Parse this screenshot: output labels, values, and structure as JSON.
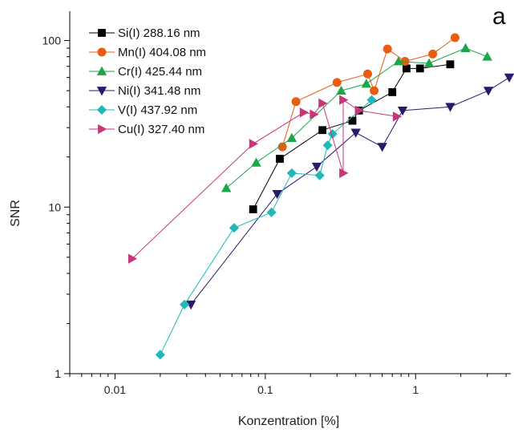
{
  "chart_data": {
    "type": "scatter",
    "panel_label": "a",
    "xlabel": "Konzentration [%]",
    "ylabel": "SNR",
    "xscale": "log",
    "yscale": "log",
    "xlim": [
      0.005,
      4.3
    ],
    "ylim": [
      1,
      150
    ],
    "xticks": [
      {
        "value": 0.01,
        "label": "0.01"
      },
      {
        "value": 0.1,
        "label": "0.1"
      },
      {
        "value": 1,
        "label": "1"
      }
    ],
    "yticks": [
      {
        "value": 1,
        "label": "1"
      },
      {
        "value": 10,
        "label": "10"
      },
      {
        "value": 100,
        "label": "100"
      }
    ],
    "legend_position": "top-left",
    "series": [
      {
        "name": "Si(I) 288.16 nm",
        "color": "#000000",
        "marker": "square",
        "x": [
          0.083,
          0.125,
          0.24,
          0.38,
          0.42,
          0.7,
          0.87,
          1.07,
          1.7
        ],
        "y": [
          9.7,
          19.5,
          29,
          33,
          38,
          49,
          68,
          68,
          72
        ]
      },
      {
        "name": "Mn(I) 404.08 nm",
        "color": "#e85d10",
        "marker": "circle",
        "x": [
          0.13,
          0.16,
          0.3,
          0.48,
          0.53,
          0.65,
          0.85,
          1.3,
          1.83
        ],
        "y": [
          23,
          43,
          56,
          63,
          50,
          89,
          75,
          83,
          104
        ]
      },
      {
        "name": "Cr(I) 425.44 nm",
        "color": "#1aa64a",
        "marker": "triangle-up",
        "x": [
          0.055,
          0.087,
          0.15,
          0.32,
          0.47,
          0.77,
          1.23,
          2.15,
          3.0
        ],
        "y": [
          13,
          18.5,
          26,
          50,
          55,
          75,
          73,
          90,
          80
        ]
      },
      {
        "name": "Ni(I) 341.48 nm",
        "color": "#2a1a6e",
        "marker": "triangle-down",
        "x": [
          0.032,
          0.12,
          0.22,
          0.4,
          0.6,
          0.82,
          1.7,
          3.05,
          4.2
        ],
        "y": [
          2.6,
          12,
          17.5,
          28,
          23,
          38,
          40,
          50,
          60
        ]
      },
      {
        "name": "V(I) 437.92 nm",
        "color": "#22b8b8",
        "marker": "diamond",
        "x": [
          0.02,
          0.029,
          0.062,
          0.11,
          0.15,
          0.23,
          0.26,
          0.28,
          0.51
        ],
        "y": [
          1.3,
          2.6,
          7.5,
          9.3,
          16,
          15.5,
          23.5,
          27.5,
          44
        ]
      },
      {
        "name": "Cu(I) 327.40 nm",
        "color": "#c8367a",
        "marker": "triangle-right",
        "x": [
          0.013,
          0.083,
          0.18,
          0.21,
          0.24,
          0.33,
          0.33,
          0.42,
          0.75
        ],
        "y": [
          4.9,
          24,
          37,
          36,
          42,
          16,
          44,
          38,
          35
        ]
      }
    ]
  }
}
